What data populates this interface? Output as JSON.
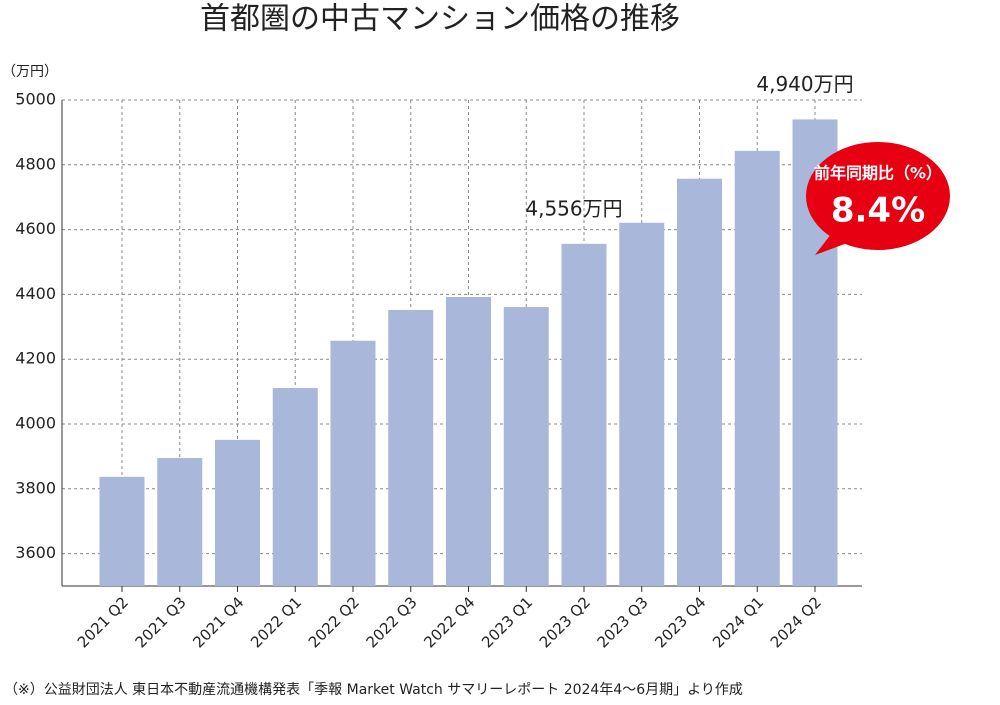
{
  "chart_data": {
    "type": "bar",
    "title": "首都圏の中古マンション価格の推移",
    "y_label": "（万円）",
    "categories": [
      "2021 Q2",
      "2021 Q3",
      "2021 Q4",
      "2022 Q1",
      "2022 Q2",
      "2022 Q3",
      "2022 Q4",
      "2023 Q1",
      "2023 Q2",
      "2023 Q3",
      "2023 Q4",
      "2024 Q1",
      "2024 Q2"
    ],
    "values": [
      3837,
      3895,
      3951,
      4111,
      4257,
      4352,
      4392,
      4361,
      4556,
      4621,
      4757,
      4843,
      4940
    ],
    "value_labels": [
      null,
      null,
      null,
      null,
      null,
      null,
      null,
      null,
      "4,556万円",
      null,
      null,
      null,
      "4,940万円"
    ],
    "color": "#a9b7da",
    "ylim": [
      3500,
      5000
    ],
    "yticks": [
      3600,
      3800,
      4000,
      4200,
      4400,
      4600,
      4800,
      5000
    ],
    "grid": true,
    "annotation": {
      "title": "前年同期比（%）",
      "value": 8.4,
      "label": "8.4%",
      "color": "#e60012"
    },
    "source": "（※）公益財団法人 東日本不動産流通機構発表「季報 Market Watch サマリーレポート 2024年4〜6月期」より作成"
  }
}
